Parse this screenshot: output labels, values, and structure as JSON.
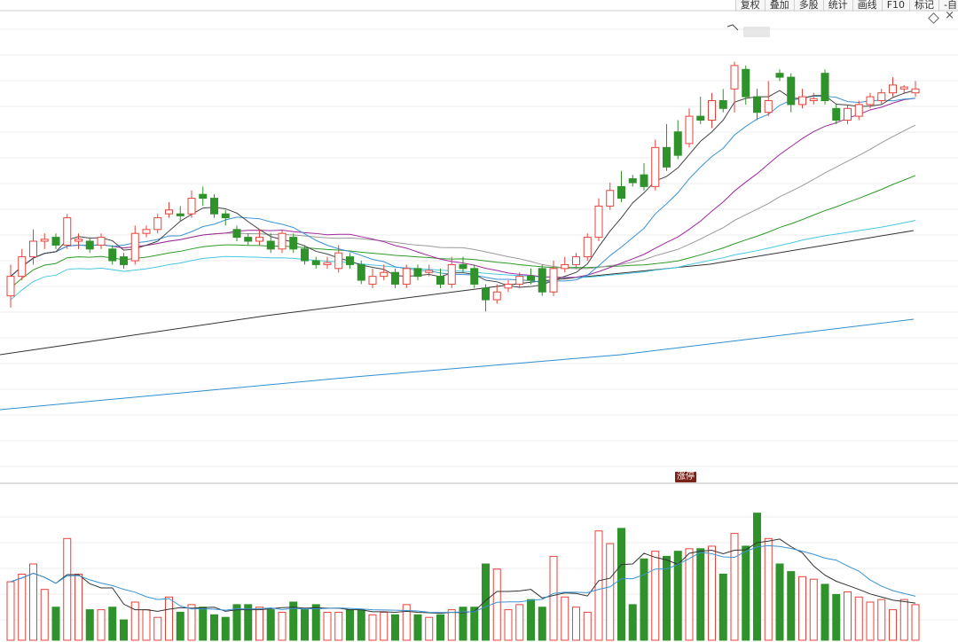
{
  "toolbar": {
    "items": [
      "复权",
      "叠加",
      "多股",
      "统计",
      "画线",
      "F10",
      "标记",
      "-自"
    ]
  },
  "icons": {
    "diamond": "diamond-icon",
    "close": "close-icon"
  },
  "badge": {
    "label": "涨停"
  },
  "colors": {
    "up": "#e8433b",
    "down": "#2f922b",
    "ma5": "#444444",
    "ma10": "#3a93d6",
    "ma20": "#a02a9e",
    "ma30": "#9a9a9a",
    "ma60": "#2e9a28",
    "ma120": "#49c8e0",
    "ma250": "#333333",
    "ma500": "#2f8fd1",
    "vol_ma5": "#333333",
    "vol_ma10": "#3a93d6"
  },
  "chart_data": {
    "type": "candlestick",
    "title": "",
    "xlabel": "",
    "ylabel": "",
    "price_range": [
      0,
      100
    ],
    "volume_range": [
      0,
      100
    ],
    "grid": true,
    "candles": [
      {
        "o": 48,
        "c": 53,
        "h": 56,
        "l": 45,
        "v": 23,
        "up": true
      },
      {
        "o": 53,
        "c": 58,
        "h": 60,
        "l": 52,
        "v": 26,
        "up": true
      },
      {
        "o": 58,
        "c": 62,
        "h": 65,
        "l": 56,
        "v": 30,
        "up": true
      },
      {
        "o": 62,
        "c": 62.5,
        "h": 64,
        "l": 60,
        "v": 20,
        "up": true
      },
      {
        "o": 63,
        "c": 61,
        "h": 64,
        "l": 60,
        "v": 13,
        "down": true
      },
      {
        "o": 61,
        "c": 68,
        "h": 69,
        "l": 60,
        "v": 40,
        "up": true
      },
      {
        "o": 62,
        "c": 62.5,
        "h": 64,
        "l": 60,
        "v": 26,
        "up": true
      },
      {
        "o": 62,
        "c": 60,
        "h": 63,
        "l": 59,
        "v": 12,
        "up": false
      },
      {
        "o": 61,
        "c": 63,
        "h": 64,
        "l": 60,
        "v": 12,
        "up": true
      },
      {
        "o": 60,
        "c": 57,
        "h": 61,
        "l": 56,
        "v": 13,
        "up": false
      },
      {
        "o": 58,
        "c": 56,
        "h": 59,
        "l": 55,
        "v": 8,
        "up": false
      },
      {
        "o": 57,
        "c": 64,
        "h": 66,
        "l": 56,
        "v": 15,
        "up": true
      },
      {
        "o": 64,
        "c": 65,
        "h": 66,
        "l": 63,
        "v": 12,
        "up": true
      },
      {
        "o": 65,
        "c": 68,
        "h": 69,
        "l": 64,
        "v": 9,
        "up": true
      },
      {
        "o": 69,
        "c": 70,
        "h": 72,
        "l": 68,
        "v": 17,
        "up": false
      },
      {
        "o": 69,
        "c": 68.5,
        "h": 71,
        "l": 67,
        "v": 11,
        "up": true
      },
      {
        "o": 69,
        "c": 73,
        "h": 75,
        "l": 68,
        "v": 14,
        "up": true
      },
      {
        "o": 74,
        "c": 73,
        "h": 76,
        "l": 71,
        "v": 13,
        "up": false
      },
      {
        "o": 73,
        "c": 69,
        "h": 74,
        "l": 68,
        "v": 10,
        "up": false
      },
      {
        "o": 69,
        "c": 68,
        "h": 70,
        "l": 66,
        "v": 9,
        "up": false
      },
      {
        "o": 65,
        "c": 63,
        "h": 66,
        "l": 62,
        "v": 14,
        "up": false
      },
      {
        "o": 63,
        "c": 62,
        "h": 64,
        "l": 61,
        "v": 14,
        "up": false
      },
      {
        "o": 62,
        "c": 63,
        "h": 65,
        "l": 61,
        "v": 13,
        "up": true
      },
      {
        "o": 62,
        "c": 60,
        "h": 64,
        "l": 59,
        "v": 12,
        "up": true
      },
      {
        "o": 60,
        "c": 64,
        "h": 65,
        "l": 59,
        "v": 11,
        "up": true
      },
      {
        "o": 63,
        "c": 60,
        "h": 64,
        "l": 59,
        "v": 15,
        "up": false
      },
      {
        "o": 60,
        "c": 57,
        "h": 61,
        "l": 56,
        "v": 12,
        "up": false
      },
      {
        "o": 57,
        "c": 56,
        "h": 58,
        "l": 55,
        "v": 14,
        "up": false
      },
      {
        "o": 56,
        "c": 56.5,
        "h": 58,
        "l": 55,
        "v": 11,
        "up": true
      },
      {
        "o": 55,
        "c": 59,
        "h": 61,
        "l": 54,
        "v": 11,
        "up": true
      },
      {
        "o": 58,
        "c": 56,
        "h": 59,
        "l": 55,
        "v": 12,
        "up": false
      },
      {
        "o": 56,
        "c": 52,
        "h": 57,
        "l": 51,
        "v": 12,
        "up": false
      },
      {
        "o": 51,
        "c": 53,
        "h": 55,
        "l": 50,
        "v": 10,
        "up": true
      },
      {
        "o": 53,
        "c": 54,
        "h": 56,
        "l": 52,
        "v": 11,
        "up": true
      },
      {
        "o": 54,
        "c": 51,
        "h": 55,
        "l": 50,
        "v": 10,
        "up": false
      },
      {
        "o": 51,
        "c": 55,
        "h": 56,
        "l": 50,
        "v": 14,
        "up": true
      },
      {
        "o": 55,
        "c": 53,
        "h": 56,
        "l": 52,
        "v": 10,
        "up": false
      },
      {
        "o": 54,
        "c": 54.5,
        "h": 56,
        "l": 53,
        "v": 9,
        "up": true
      },
      {
        "o": 53,
        "c": 51,
        "h": 55,
        "l": 50,
        "v": 10,
        "up": false
      },
      {
        "o": 51,
        "c": 56,
        "h": 58,
        "l": 50,
        "v": 12,
        "up": true
      },
      {
        "o": 56,
        "c": 55,
        "h": 58,
        "l": 54,
        "v": 13,
        "up": true
      },
      {
        "o": 55,
        "c": 51,
        "h": 56,
        "l": 50,
        "v": 13,
        "up": false
      },
      {
        "o": 50,
        "c": 47,
        "h": 51,
        "l": 44,
        "v": 30,
        "up": true
      },
      {
        "o": 47,
        "c": 49,
        "h": 51,
        "l": 46,
        "v": 28,
        "up": true
      },
      {
        "o": 50,
        "c": 51,
        "h": 52,
        "l": 49,
        "v": 12,
        "up": true
      },
      {
        "o": 51,
        "c": 53,
        "h": 54,
        "l": 50,
        "v": 14,
        "up": true
      },
      {
        "o": 53,
        "c": 52,
        "h": 55,
        "l": 51,
        "v": 16,
        "up": true
      },
      {
        "o": 55,
        "c": 49,
        "h": 56,
        "l": 48,
        "v": 13,
        "up": false
      },
      {
        "o": 49,
        "c": 55,
        "h": 57,
        "l": 48,
        "v": 33,
        "up": true
      },
      {
        "o": 55,
        "c": 56,
        "h": 58,
        "l": 54,
        "v": 17,
        "up": true
      },
      {
        "o": 56,
        "c": 58,
        "h": 59,
        "l": 55,
        "v": 13,
        "up": true
      },
      {
        "o": 58,
        "c": 63,
        "h": 64,
        "l": 57,
        "v": 11,
        "up": true
      },
      {
        "o": 63,
        "c": 71,
        "h": 73,
        "l": 62,
        "v": 43,
        "up": true
      },
      {
        "o": 71,
        "c": 75,
        "h": 77,
        "l": 70,
        "v": 38,
        "up": true
      },
      {
        "o": 76,
        "c": 73,
        "h": 80,
        "l": 72,
        "v": 44,
        "up": false
      },
      {
        "o": 78,
        "c": 77,
        "h": 79,
        "l": 76,
        "v": 14,
        "up": true
      },
      {
        "o": 79,
        "c": 76,
        "h": 82,
        "l": 75,
        "v": 32,
        "up": false
      },
      {
        "o": 76,
        "c": 86,
        "h": 88,
        "l": 75,
        "v": 35,
        "up": true
      },
      {
        "o": 86,
        "c": 81,
        "h": 92,
        "l": 80,
        "v": 33,
        "up": false
      },
      {
        "o": 90,
        "c": 84,
        "h": 93,
        "l": 83,
        "v": 35,
        "up": false
      },
      {
        "o": 87,
        "c": 94,
        "h": 96,
        "l": 86,
        "v": 36,
        "up": true
      },
      {
        "o": 94,
        "c": 93,
        "h": 99,
        "l": 92,
        "v": 36,
        "up": true
      },
      {
        "o": 93,
        "c": 98,
        "h": 100,
        "l": 91,
        "v": 37,
        "up": true
      },
      {
        "o": 98,
        "c": 96,
        "h": 101,
        "l": 95,
        "v": 26,
        "up": false
      },
      {
        "o": 101,
        "c": 107,
        "h": 108,
        "l": 95,
        "v": 42,
        "up": true
      },
      {
        "o": 106,
        "c": 99,
        "h": 107,
        "l": 97,
        "v": 37,
        "up": false
      },
      {
        "o": 99,
        "c": 95,
        "h": 101,
        "l": 93,
        "v": 50,
        "up": false
      },
      {
        "o": 95,
        "c": 98,
        "h": 103,
        "l": 94,
        "v": 40,
        "up": true
      },
      {
        "o": 105,
        "c": 104,
        "h": 106,
        "l": 103,
        "v": 30,
        "up": true
      },
      {
        "o": 104,
        "c": 97,
        "h": 105,
        "l": 95,
        "v": 27,
        "up": false
      },
      {
        "o": 97,
        "c": 99,
        "h": 101,
        "l": 96,
        "v": 25,
        "up": true
      },
      {
        "o": 98,
        "c": 98.5,
        "h": 100,
        "l": 97,
        "v": 24,
        "up": true
      },
      {
        "o": 105,
        "c": 98,
        "h": 106,
        "l": 97,
        "v": 22,
        "up": false
      },
      {
        "o": 96,
        "c": 93,
        "h": 97,
        "l": 92,
        "v": 18,
        "up": true
      },
      {
        "o": 93,
        "c": 96,
        "h": 97,
        "l": 92,
        "v": 19,
        "up": true
      },
      {
        "o": 94,
        "c": 97,
        "h": 98,
        "l": 93,
        "v": 17,
        "up": true
      },
      {
        "o": 97,
        "c": 99,
        "h": 100,
        "l": 96,
        "v": 15,
        "up": true
      },
      {
        "o": 98,
        "c": 100,
        "h": 101,
        "l": 97,
        "v": 16,
        "up": true
      },
      {
        "o": 100,
        "c": 102,
        "h": 104,
        "l": 99,
        "v": 12,
        "up": false
      },
      {
        "o": 101,
        "c": 101.5,
        "h": 102,
        "l": 100,
        "v": 16,
        "up": true
      },
      {
        "o": 100,
        "c": 101,
        "h": 103,
        "l": 99,
        "v": 14,
        "up": true
      }
    ],
    "legend": []
  }
}
